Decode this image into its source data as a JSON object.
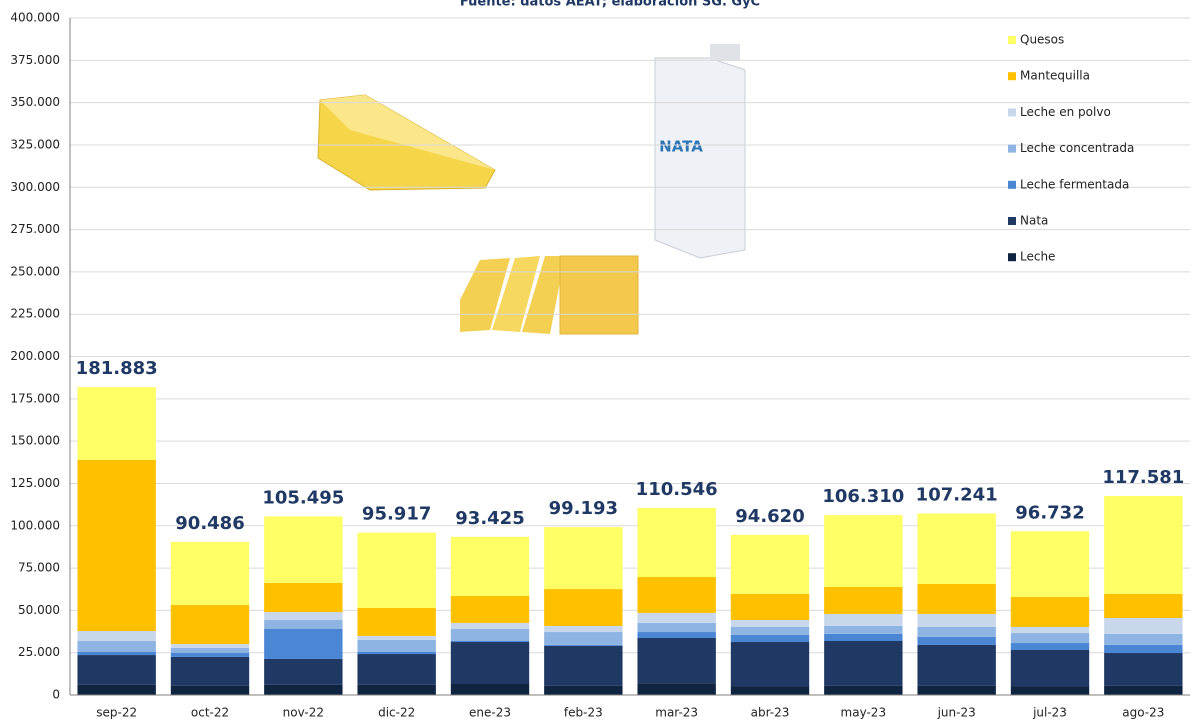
{
  "chart_data": {
    "type": "stacked_bar",
    "title": "Fuente: datos AEAT; elaboración SG. GyC",
    "annotations": [
      "NATA"
    ],
    "categories": [
      "sep-22",
      "oct-22",
      "nov-22",
      "dic-22",
      "ene-23",
      "feb-23",
      "mar-23",
      "abr-23",
      "may-23",
      "jun-23",
      "jul-23",
      "ago-23"
    ],
    "series": [
      {
        "name": "Leche",
        "color": "#0f2440",
        "values": [
          6000,
          5500,
          6000,
          6000,
          6500,
          5500,
          7000,
          5000,
          5500,
          5500,
          5000,
          5500
        ]
      },
      {
        "name": "Nata",
        "color": "#1f3864",
        "values": [
          17600,
          17000,
          15300,
          18200,
          24800,
          23500,
          26700,
          26300,
          26400,
          24100,
          21600,
          19300
        ]
      },
      {
        "name": "Leche fermentada",
        "color": "#4a86d4",
        "values": [
          1800,
          2300,
          17700,
          1200,
          600,
          600,
          3500,
          4200,
          4200,
          4700,
          4100,
          4800
        ]
      },
      {
        "name": "Leche concentrada",
        "color": "#8eb4e3",
        "values": [
          6500,
          3000,
          5300,
          7100,
          7100,
          7600,
          5400,
          4700,
          4700,
          5900,
          5900,
          6500
        ]
      },
      {
        "name": "Leche en polvo",
        "color": "#c8d7eb",
        "values": [
          5900,
          2300,
          4700,
          2400,
          3600,
          3600,
          5900,
          4100,
          7100,
          7700,
          3600,
          9400
        ]
      },
      {
        "name": "Mantequilla",
        "color": "#ffc000",
        "values": [
          101100,
          23100,
          17200,
          16500,
          15900,
          21800,
          21200,
          15400,
          15900,
          17700,
          17700,
          14200
        ]
      },
      {
        "name": "Quesos",
        "color": "#ffff66",
        "values": [
          42983,
          37286,
          39295,
          44517,
          34925,
          36593,
          40846,
          34920,
          42510,
          41641,
          38832,
          57881
        ]
      }
    ],
    "totals": [
      181883,
      90486,
      105495,
      95917,
      93425,
      99193,
      110546,
      94620,
      106310,
      107241,
      96732,
      117581
    ],
    "value_labels": [
      "181.883",
      "90.486",
      "105.495",
      "95.917",
      "93.425",
      "99.193",
      "110.546",
      "94.620",
      "106.310",
      "107.241",
      "96.732",
      "117.581"
    ],
    "ylim": [
      0,
      400000
    ],
    "yticks": [
      0,
      {
        "value": 25000,
        "label": "25.000"
      },
      {
        "value": 50000,
        "label": "50.000"
      },
      {
        "value": 75000,
        "label": "75.000"
      },
      {
        "value": 100000,
        "label": "100.000"
      },
      {
        "value": 125000,
        "label": "125.000"
      },
      {
        "value": 150000,
        "label": "150.000"
      },
      {
        "value": 175000,
        "label": "175.000"
      },
      {
        "value": 200000,
        "label": "200.000"
      },
      {
        "value": 225000,
        "label": "225.000"
      },
      {
        "value": 250000,
        "label": "250.000"
      },
      {
        "value": 275000,
        "label": "275.000"
      },
      {
        "value": 300000,
        "label": "300.000"
      },
      {
        "value": 325000,
        "label": "325.000"
      },
      {
        "value": 350000,
        "label": "350.000"
      },
      {
        "value": 375000,
        "label": "375.000"
      },
      {
        "value": 400000,
        "label": "400.000"
      }
    ],
    "grid": true,
    "legend": "top-right"
  }
}
